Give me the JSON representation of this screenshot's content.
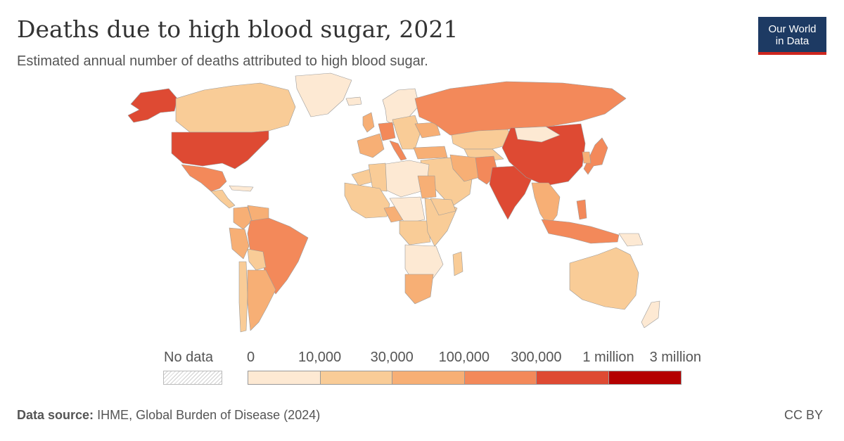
{
  "title": "Deaths due to high blood sugar, 2021",
  "subtitle": "Estimated annual number of deaths attributed to high blood sugar.",
  "logo": {
    "line1": "Our World",
    "line2": "in Data"
  },
  "legend": {
    "no_data_label": "No data",
    "ticks": [
      "0",
      "10,000",
      "30,000",
      "100,000",
      "300,000",
      "1 million",
      "3 million"
    ],
    "colors": [
      "#fde9d3",
      "#f9cc97",
      "#f7af75",
      "#f3895a",
      "#de4a33",
      "#b40000"
    ]
  },
  "footer": {
    "source_label": "Data source:",
    "source_value": "IHME, Global Burden of Disease (2024)",
    "license": "CC BY"
  },
  "regions": [
    {
      "name": "Alaska",
      "color": "#de4a33"
    },
    {
      "name": "Canada",
      "color": "#f9cc97"
    },
    {
      "name": "Greenland",
      "color": "#fde9d3"
    },
    {
      "name": "United States",
      "color": "#de4a33"
    },
    {
      "name": "Mexico",
      "color": "#f3895a"
    },
    {
      "name": "Central America",
      "color": "#f9cc97"
    },
    {
      "name": "Caribbean",
      "color": "#fde9d3"
    },
    {
      "name": "Colombia",
      "color": "#f7af75"
    },
    {
      "name": "Venezuela",
      "color": "#f7af75"
    },
    {
      "name": "Peru",
      "color": "#f7af75"
    },
    {
      "name": "Brazil",
      "color": "#f3895a"
    },
    {
      "name": "Bolivia",
      "color": "#f9cc97"
    },
    {
      "name": "Chile",
      "color": "#f9cc97"
    },
    {
      "name": "Argentina",
      "color": "#f7af75"
    },
    {
      "name": "Iceland",
      "color": "#fde9d3"
    },
    {
      "name": "Scandinavia",
      "color": "#fde9d3"
    },
    {
      "name": "United Kingdom",
      "color": "#f7af75"
    },
    {
      "name": "Western Europe",
      "color": "#f7af75"
    },
    {
      "name": "Germany",
      "color": "#f3895a"
    },
    {
      "name": "Italy",
      "color": "#f3895a"
    },
    {
      "name": "Eastern Europe",
      "color": "#f9cc97"
    },
    {
      "name": "Ukraine",
      "color": "#f7af75"
    },
    {
      "name": "Russia",
      "color": "#f3895a"
    },
    {
      "name": "Kazakhstan",
      "color": "#f9cc97"
    },
    {
      "name": "Central Asia",
      "color": "#f9cc97"
    },
    {
      "name": "Turkey",
      "color": "#f7af75"
    },
    {
      "name": "Middle East",
      "color": "#f9cc97"
    },
    {
      "name": "Iran",
      "color": "#f7af75"
    },
    {
      "name": "Pakistan",
      "color": "#f3895a"
    },
    {
      "name": "India",
      "color": "#de4a33"
    },
    {
      "name": "China",
      "color": "#de4a33"
    },
    {
      "name": "Mongolia",
      "color": "#fde9d3"
    },
    {
      "name": "Japan",
      "color": "#f3895a"
    },
    {
      "name": "Korea",
      "color": "#f7af75"
    },
    {
      "name": "Southeast Asia",
      "color": "#f7af75"
    },
    {
      "name": "Philippines",
      "color": "#f3895a"
    },
    {
      "name": "Indonesia",
      "color": "#f3895a"
    },
    {
      "name": "Papua New Guinea",
      "color": "#fde9d3"
    },
    {
      "name": "Australia",
      "color": "#f9cc97"
    },
    {
      "name": "New Zealand",
      "color": "#fde9d3"
    },
    {
      "name": "North Africa",
      "color": "#fde9d3"
    },
    {
      "name": "Morocco",
      "color": "#f9cc97"
    },
    {
      "name": "Algeria",
      "color": "#f9cc97"
    },
    {
      "name": "Egypt",
      "color": "#f7af75"
    },
    {
      "name": "West Africa",
      "color": "#f9cc97"
    },
    {
      "name": "Nigeria",
      "color": "#f7af75"
    },
    {
      "name": "Central Africa",
      "color": "#fde9d3"
    },
    {
      "name": "DR Congo",
      "color": "#f9cc97"
    },
    {
      "name": "East Africa",
      "color": "#f9cc97"
    },
    {
      "name": "Ethiopia",
      "color": "#f9cc97"
    },
    {
      "name": "Southern Africa",
      "color": "#fde9d3"
    },
    {
      "name": "South Africa",
      "color": "#f7af75"
    },
    {
      "name": "Madagascar",
      "color": "#f9cc97"
    }
  ]
}
